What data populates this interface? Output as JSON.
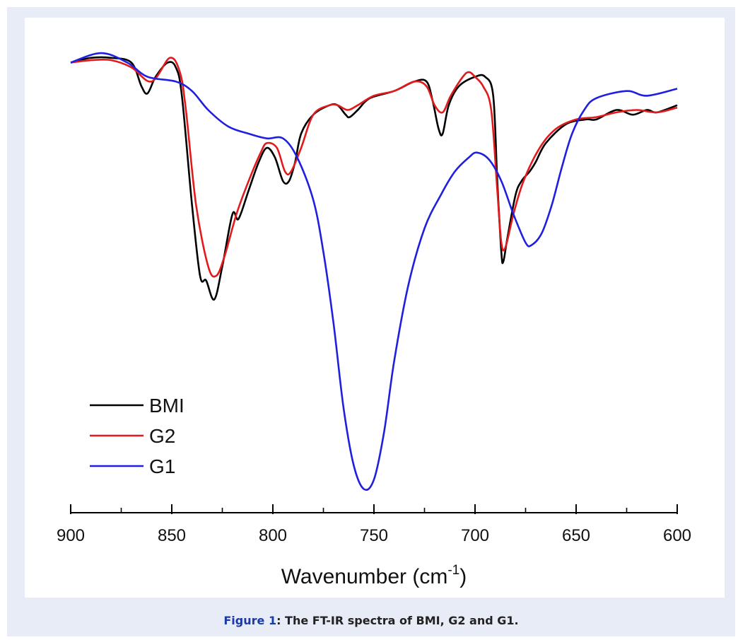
{
  "caption": {
    "label": "Figure 1",
    "text": ": The FT-IR spectra of BMI, G2 and G1."
  },
  "chart_data": {
    "type": "line",
    "xlabel_main": "Wavenumber (cm",
    "xlabel_sup": "-1",
    "xlabel_close": ")",
    "xlim": [
      900,
      600
    ],
    "x_reversed": true,
    "ylim": [
      0,
      100
    ],
    "y_axis_shown": false,
    "grid": false,
    "legend_position": "bottom-left",
    "xticks": [
      900,
      850,
      800,
      750,
      700,
      650,
      600
    ],
    "xtick_labels": [
      "900",
      "850",
      "800",
      "750",
      "700",
      "650",
      "600"
    ],
    "series": [
      {
        "name": "BMI",
        "color": "#000000",
        "points": [
          [
            900,
            95
          ],
          [
            890,
            96
          ],
          [
            880,
            96
          ],
          [
            870,
            95
          ],
          [
            865,
            90
          ],
          [
            862,
            88.5
          ],
          [
            858,
            92
          ],
          [
            852,
            95
          ],
          [
            848,
            94
          ],
          [
            845,
            88
          ],
          [
            840,
            65
          ],
          [
            836,
            50
          ],
          [
            833,
            49
          ],
          [
            829,
            45
          ],
          [
            825,
            52
          ],
          [
            820,
            63
          ],
          [
            817,
            62
          ],
          [
            812,
            68
          ],
          [
            807,
            74
          ],
          [
            803,
            77
          ],
          [
            799,
            75
          ],
          [
            795,
            70
          ],
          [
            792,
            70
          ],
          [
            789,
            74
          ],
          [
            786,
            80
          ],
          [
            780,
            84
          ],
          [
            772,
            86
          ],
          [
            768,
            86
          ],
          [
            764,
            84
          ],
          [
            762,
            83.5
          ],
          [
            758,
            85
          ],
          [
            752,
            87.5
          ],
          [
            740,
            89
          ],
          [
            730,
            91
          ],
          [
            724,
            91
          ],
          [
            721,
            87
          ],
          [
            718,
            81
          ],
          [
            716,
            80
          ],
          [
            713,
            86
          ],
          [
            708,
            90
          ],
          [
            700,
            92
          ],
          [
            695,
            92
          ],
          [
            691,
            88
          ],
          [
            689,
            70
          ],
          [
            687,
            55
          ],
          [
            686,
            53
          ],
          [
            684,
            58
          ],
          [
            680,
            67
          ],
          [
            677,
            70
          ],
          [
            673,
            72
          ],
          [
            670,
            74
          ],
          [
            665,
            78
          ],
          [
            655,
            82
          ],
          [
            645,
            83
          ],
          [
            640,
            83
          ],
          [
            630,
            85
          ],
          [
            622,
            84
          ],
          [
            615,
            85
          ],
          [
            610,
            84.5
          ],
          [
            600,
            86
          ]
        ]
      },
      {
        "name": "G2",
        "color": "#e31a1c",
        "points": [
          [
            900,
            95
          ],
          [
            890,
            95.5
          ],
          [
            880,
            95.5
          ],
          [
            870,
            94
          ],
          [
            860,
            91
          ],
          [
            851,
            96
          ],
          [
            846,
            93
          ],
          [
            843,
            85
          ],
          [
            838,
            65
          ],
          [
            832,
            52
          ],
          [
            828,
            50
          ],
          [
            824,
            54
          ],
          [
            818,
            63
          ],
          [
            812,
            70
          ],
          [
            806,
            76
          ],
          [
            803,
            78
          ],
          [
            798,
            77
          ],
          [
            794,
            72
          ],
          [
            791,
            72
          ],
          [
            786,
            77
          ],
          [
            780,
            84
          ],
          [
            772,
            86
          ],
          [
            768,
            86
          ],
          [
            763,
            85
          ],
          [
            758,
            86
          ],
          [
            750,
            88
          ],
          [
            740,
            89
          ],
          [
            730,
            91
          ],
          [
            724,
            90
          ],
          [
            720,
            86
          ],
          [
            716,
            84.5
          ],
          [
            712,
            88
          ],
          [
            706,
            92
          ],
          [
            703,
            93
          ],
          [
            700,
            92
          ],
          [
            696,
            90
          ],
          [
            692,
            85
          ],
          [
            689,
            68
          ],
          [
            687,
            57
          ],
          [
            685,
            56
          ],
          [
            681,
            63
          ],
          [
            676,
            70
          ],
          [
            668,
            77
          ],
          [
            660,
            81
          ],
          [
            650,
            83
          ],
          [
            640,
            83.5
          ],
          [
            630,
            84.5
          ],
          [
            620,
            85
          ],
          [
            610,
            84.5
          ],
          [
            600,
            85.5
          ]
        ]
      },
      {
        "name": "G1",
        "color": "#1f1fe0",
        "points": [
          [
            900,
            95
          ],
          [
            885,
            97
          ],
          [
            872,
            95
          ],
          [
            862,
            92
          ],
          [
            848,
            91
          ],
          [
            840,
            89
          ],
          [
            832,
            85
          ],
          [
            822,
            81.5
          ],
          [
            812,
            80
          ],
          [
            803,
            79
          ],
          [
            795,
            79
          ],
          [
            788,
            75
          ],
          [
            780,
            66
          ],
          [
            775,
            55
          ],
          [
            770,
            40
          ],
          [
            765,
            22
          ],
          [
            760,
            10
          ],
          [
            755,
            5
          ],
          [
            750,
            7
          ],
          [
            745,
            17
          ],
          [
            740,
            32
          ],
          [
            733,
            48
          ],
          [
            725,
            60
          ],
          [
            717,
            67
          ],
          [
            710,
            72
          ],
          [
            703,
            75
          ],
          [
            699,
            76
          ],
          [
            693,
            74.5
          ],
          [
            687,
            70
          ],
          [
            681,
            63
          ],
          [
            675,
            57
          ],
          [
            672,
            56.5
          ],
          [
            667,
            59
          ],
          [
            662,
            65
          ],
          [
            657,
            73
          ],
          [
            652,
            80
          ],
          [
            646,
            85
          ],
          [
            640,
            87.5
          ],
          [
            625,
            89
          ],
          [
            615,
            88
          ],
          [
            600,
            89.5
          ]
        ]
      }
    ]
  }
}
